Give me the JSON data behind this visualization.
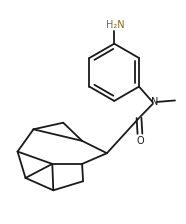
{
  "background_color": "#ffffff",
  "line_color": "#1a1a1a",
  "line_width": 1.3,
  "dbo": 0.012,
  "text_NH2": "H₂N",
  "text_N": "N",
  "text_O": "O",
  "font_size": 7.0,
  "figsize": [
    1.86,
    2.24
  ],
  "dpi": 100,
  "xlim": [
    0.0,
    1.0
  ],
  "ylim": [
    0.0,
    1.0
  ]
}
